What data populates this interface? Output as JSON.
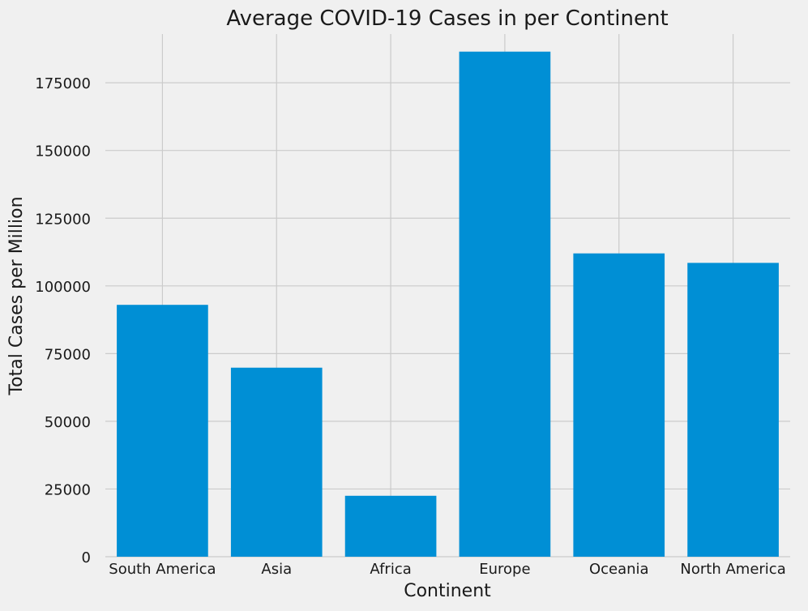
{
  "chart_data": {
    "type": "bar",
    "title": "Average COVID-19 Cases in per Continent",
    "xlabel": "Continent",
    "ylabel": "Total Cases per Million",
    "categories": [
      "South America",
      "Asia",
      "Africa",
      "Europe",
      "Oceania",
      "North America"
    ],
    "values": [
      93000,
      69800,
      22500,
      186500,
      112000,
      108500
    ],
    "ylim": [
      0,
      193000
    ],
    "yticks": [
      0,
      25000,
      50000,
      75000,
      100000,
      125000,
      150000,
      175000
    ],
    "grid": true,
    "bar_color": "#008fd5",
    "background_color": "#f0f0f0",
    "grid_color": "#cbcbcb"
  }
}
